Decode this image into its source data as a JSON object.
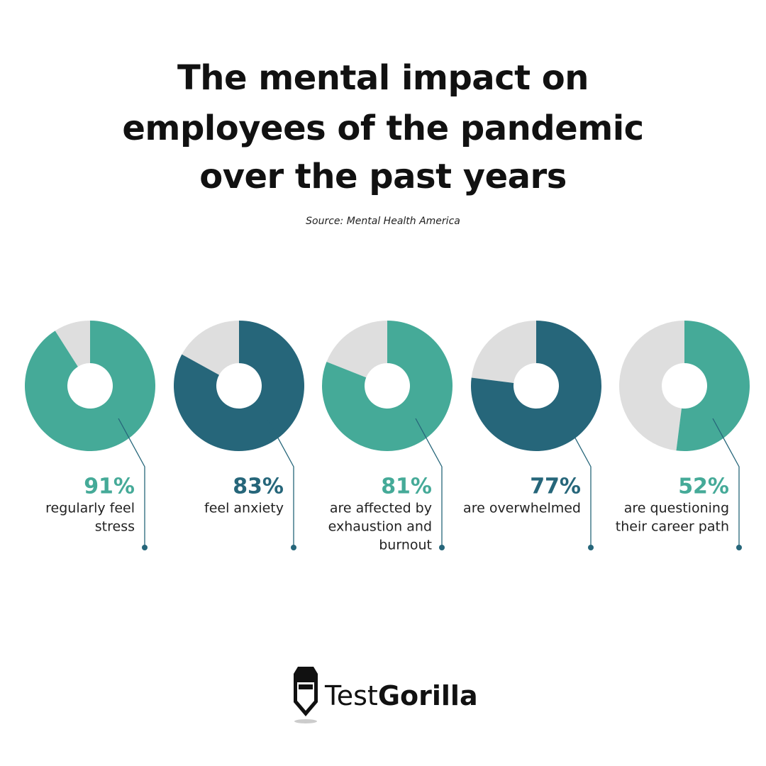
{
  "title": [
    "The mental impact on",
    "employees of the pandemic",
    "over the past years"
  ],
  "source": "Source: Mental Health America",
  "chart_data": [
    {
      "type": "donut",
      "values": [
        91
      ],
      "value_labels": [
        "91%"
      ],
      "label": [
        "regularly feel",
        "stress"
      ],
      "color": "#45aa98"
    },
    {
      "type": "donut",
      "values": [
        83
      ],
      "value_labels": [
        "83%"
      ],
      "label": [
        "feel anxiety"
      ],
      "color": "#26667a"
    },
    {
      "type": "donut",
      "values": [
        81
      ],
      "value_labels": [
        "81%"
      ],
      "label": [
        "are affected by",
        "exhaustion and",
        "burnout"
      ],
      "color": "#45aa98"
    },
    {
      "type": "donut",
      "values": [
        77
      ],
      "value_labels": [
        "77%"
      ],
      "label": [
        "are overwhelmed"
      ],
      "color": "#26667a"
    },
    {
      "type": "donut",
      "values": [
        52
      ],
      "value_labels": [
        "52%"
      ],
      "label": [
        "are questioning",
        "their career path"
      ],
      "color": "#45aa98"
    }
  ],
  "logo": {
    "part1": "Test",
    "part2": "Gorilla"
  }
}
